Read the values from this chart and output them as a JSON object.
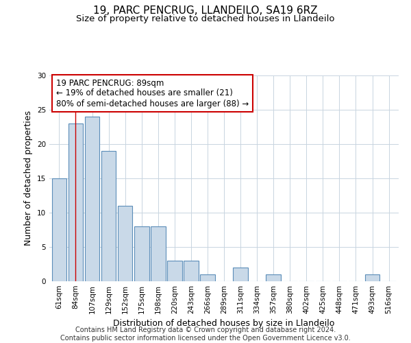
{
  "title": "19, PARC PENCRUG, LLANDEILO, SA19 6RZ",
  "subtitle": "Size of property relative to detached houses in Llandeilo",
  "xlabel": "Distribution of detached houses by size in Llandeilo",
  "ylabel": "Number of detached properties",
  "categories": [
    "61sqm",
    "84sqm",
    "107sqm",
    "129sqm",
    "152sqm",
    "175sqm",
    "198sqm",
    "220sqm",
    "243sqm",
    "266sqm",
    "289sqm",
    "311sqm",
    "334sqm",
    "357sqm",
    "380sqm",
    "402sqm",
    "425sqm",
    "448sqm",
    "471sqm",
    "493sqm",
    "516sqm"
  ],
  "values": [
    15,
    23,
    24,
    19,
    11,
    8,
    8,
    3,
    3,
    1,
    0,
    2,
    0,
    1,
    0,
    0,
    0,
    0,
    0,
    1,
    0
  ],
  "bar_color": "#c9d9e8",
  "bar_edge_color": "#5b8db8",
  "vline_x": 1,
  "vline_color": "#cc0000",
  "annotation_line1": "19 PARC PENCRUG: 89sqm",
  "annotation_line2": "← 19% of detached houses are smaller (21)",
  "annotation_line3": "80% of semi-detached houses are larger (88) →",
  "annotation_box_color": "#cc0000",
  "ylim": [
    0,
    30
  ],
  "yticks": [
    0,
    5,
    10,
    15,
    20,
    25,
    30
  ],
  "grid_color": "#c8d4e0",
  "background_color": "#ffffff",
  "footer_text": "Contains HM Land Registry data © Crown copyright and database right 2024.\nContains public sector information licensed under the Open Government Licence v3.0.",
  "title_fontsize": 11,
  "subtitle_fontsize": 9.5,
  "axis_label_fontsize": 9,
  "tick_fontsize": 7.5,
  "footer_fontsize": 7,
  "annotation_fontsize": 8.5
}
